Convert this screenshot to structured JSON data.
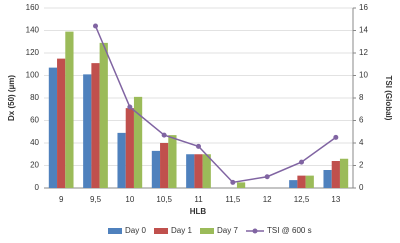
{
  "chart_data": {
    "type": "bar_line",
    "x_label": "HLB",
    "y_label": "Dx (50) (µm)",
    "y2_label": "TSI (Global)",
    "categories": [
      "9",
      "9,5",
      "10",
      "10,5",
      "11",
      "11,5",
      "12",
      "12,5",
      "13"
    ],
    "series": [
      {
        "name": "Day 0",
        "color": "#4f81bd",
        "type": "bar",
        "values": [
          107,
          101,
          49,
          33,
          30,
          0,
          0,
          7,
          16
        ]
      },
      {
        "name": "Day 1",
        "color": "#c0504d",
        "type": "bar",
        "values": [
          115,
          111,
          71,
          40,
          30,
          0,
          0,
          11,
          24
        ]
      },
      {
        "name": "Day 7",
        "color": "#9bbb59",
        "type": "bar",
        "values": [
          139,
          129,
          81,
          47,
          30,
          5,
          0,
          11,
          26
        ]
      },
      {
        "name": "TSI @ 600 s",
        "color": "#8064a2",
        "type": "line",
        "axis": "y2",
        "values": [
          null,
          14.4,
          7.2,
          4.7,
          3.7,
          0.5,
          1.0,
          2.3,
          4.5
        ]
      }
    ],
    "ylim": [
      0,
      160
    ],
    "yticks": [
      0,
      20,
      40,
      60,
      80,
      100,
      120,
      140,
      160
    ],
    "y2lim": [
      0,
      16
    ],
    "y2ticks": [
      0,
      2,
      4,
      6,
      8,
      10,
      12,
      14,
      16
    ],
    "grid": true
  }
}
